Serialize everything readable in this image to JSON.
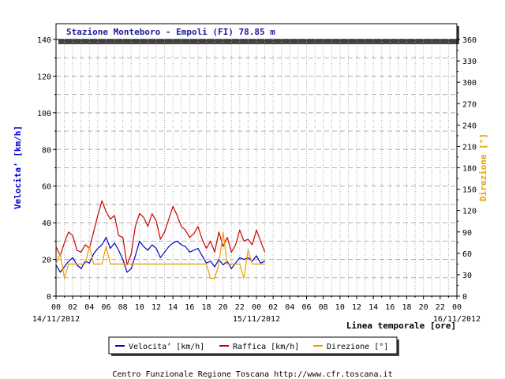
{
  "chart_data": {
    "type": "line",
    "title": "Stazione Monteboro - Empoli (FI) 78.85 m",
    "ylabel": "Velocita’ [km/h]",
    "y2label": "Direzione [°]",
    "xlabel": "Linea temporale [ore]",
    "ylim": [
      0,
      140
    ],
    "y2lim": [
      0,
      360
    ],
    "yticks": [
      "0",
      "20",
      "40",
      "60",
      "80",
      "100",
      "120",
      "140"
    ],
    "y2ticks": [
      "0",
      "30",
      "60",
      "90",
      "120",
      "150",
      "180",
      "210",
      "240",
      "270",
      "300",
      "330",
      "360"
    ],
    "xlim": [
      0,
      48
    ],
    "xticks": [
      "00",
      "02",
      "04",
      "06",
      "08",
      "10",
      "12",
      "14",
      "16",
      "18",
      "20",
      "22",
      "00",
      "02",
      "04",
      "06",
      "08",
      "10",
      "12",
      "14",
      "16",
      "18",
      "20",
      "22",
      "00"
    ],
    "date_labels": [
      {
        "hour": 0,
        "label": "14/11/2012"
      },
      {
        "hour": 24,
        "label": "15/11/2012"
      },
      {
        "hour": 48,
        "label": "16/11/2012"
      }
    ],
    "grid": true,
    "legend_position": "bottom",
    "series": [
      {
        "name": "Velocita’ [km/h]",
        "color": "#0000cc",
        "axis": "left",
        "x": [
          0,
          0.5,
          1,
          1.5,
          2,
          2.5,
          3,
          3.5,
          4,
          4.5,
          5,
          5.5,
          6,
          6.5,
          7,
          7.5,
          8,
          8.5,
          9,
          9.5,
          10,
          10.5,
          11,
          11.5,
          12,
          12.5,
          13,
          13.5,
          14,
          14.5,
          15,
          15.5,
          16,
          16.5,
          17,
          17.5,
          18,
          18.5,
          19,
          19.5,
          20,
          20.5,
          21,
          21.5,
          22,
          22.5,
          23,
          23.5,
          24,
          24.5,
          25
        ],
        "y": [
          17,
          13,
          16,
          19,
          21,
          17,
          15,
          19,
          18,
          23,
          26,
          28,
          32,
          26,
          29,
          25,
          20,
          13,
          15,
          22,
          30,
          27,
          25,
          28,
          26,
          21,
          24,
          27,
          29,
          30,
          28,
          27,
          24,
          25,
          26,
          22,
          18,
          19,
          16,
          20,
          17,
          19,
          15,
          18,
          21,
          20,
          21,
          19,
          22,
          18,
          19
        ]
      },
      {
        "name": "Raffica [km/h]",
        "color": "#cc0000",
        "axis": "left",
        "x": [
          0,
          0.5,
          1,
          1.5,
          2,
          2.5,
          3,
          3.5,
          4,
          4.5,
          5,
          5.5,
          6,
          6.5,
          7,
          7.5,
          8,
          8.5,
          9,
          9.5,
          10,
          10.5,
          11,
          11.5,
          12,
          12.5,
          13,
          13.5,
          14,
          14.5,
          15,
          15.5,
          16,
          16.5,
          17,
          17.5,
          18,
          18.5,
          19,
          19.5,
          20,
          20.5,
          21,
          21.5,
          22,
          22.5,
          23,
          23.5,
          24,
          24.5,
          25
        ],
        "y": [
          27,
          22,
          29,
          35,
          33,
          25,
          24,
          28,
          26,
          35,
          44,
          52,
          46,
          42,
          44,
          33,
          32,
          17,
          23,
          38,
          45,
          43,
          38,
          45,
          41,
          31,
          35,
          42,
          49,
          44,
          38,
          36,
          32,
          34,
          38,
          31,
          26,
          30,
          24,
          35,
          27,
          32,
          24,
          28,
          36,
          30,
          31,
          28,
          36,
          30,
          24
        ]
      },
      {
        "name": "Direzione [°]",
        "color": "#e8a000",
        "axis": "right",
        "x": [
          0,
          0.5,
          1,
          1.5,
          2,
          2.5,
          3,
          3.5,
          4,
          4.5,
          5,
          5.5,
          6,
          6.5,
          7,
          7.5,
          8,
          8.5,
          9,
          9.5,
          10,
          10.5,
          11,
          11.5,
          12,
          12.5,
          13,
          13.5,
          14,
          14.5,
          15,
          15.5,
          16,
          16.5,
          17,
          17.5,
          18,
          18.5,
          19,
          19.5,
          20,
          20.5,
          21,
          21.5,
          22,
          22.5,
          23,
          23.5,
          24,
          24.5,
          25
        ],
        "y": [
          45,
          60,
          25,
          45,
          45,
          45,
          45,
          45,
          70,
          45,
          45,
          45,
          70,
          45,
          45,
          45,
          45,
          45,
          45,
          45,
          45,
          45,
          45,
          45,
          45,
          45,
          45,
          45,
          45,
          45,
          45,
          45,
          45,
          45,
          45,
          45,
          45,
          25,
          25,
          45,
          90,
          45,
          45,
          45,
          45,
          25,
          65,
          45,
          45,
          45,
          45
        ]
      }
    ]
  },
  "footer": "Centro Funzionale Regione Toscana http://www.cfr.toscana.it"
}
